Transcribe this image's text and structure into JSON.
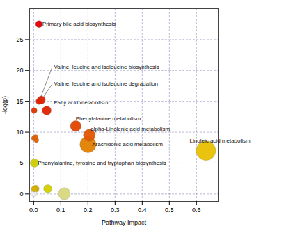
{
  "chart_data": {
    "type": "scatter",
    "xlabel": "Pathway Impact",
    "ylabel": "-log(p)",
    "x": [
      0.02,
      0.02,
      0.028,
      0.048,
      0.002,
      0.001,
      0.007,
      0.01,
      0.003,
      0.155,
      0.205,
      0.2,
      0.635,
      0.002,
      0.007,
      0.001,
      0.052,
      0.113
    ],
    "values": [
      27.5,
      15.0,
      15.2,
      13.5,
      13.5,
      9.0,
      9.2,
      8.7,
      5.0,
      11.0,
      9.5,
      8.0,
      7.0,
      0.8,
      0.85,
      0.05,
      0.85,
      0.05
    ],
    "sizes": [
      55,
      45,
      75,
      90,
      38,
      28,
      28,
      25,
      80,
      130,
      160,
      290,
      420,
      38,
      55,
      40,
      75,
      160
    ],
    "colors": [
      "#dd0000",
      "#dd2200",
      "#dd2200",
      "#dd2200",
      "#dd3300",
      "#e06000",
      "#e06000",
      "#e06000",
      "#cccc00",
      "#e04500",
      "#e05500",
      "#e08000",
      "#e8c000",
      "#d8b000",
      "#d4b000",
      "#eeeeee",
      "#d0d000",
      "#d8d880"
    ],
    "annotations": [
      {
        "text": "Primary bile acid biosynthesis",
        "x": 0.032,
        "y": 27.5
      },
      {
        "text": "Valine, leucine and isoleucine biosynthesis",
        "x": 0.075,
        "y": 20.5
      },
      {
        "text": "Valine, leucine and isoleucine degradation",
        "x": 0.075,
        "y": 17.8
      },
      {
        "text": "Fatty acid metabolism",
        "x": 0.075,
        "y": 14.8
      },
      {
        "text": "Phenylalanine metabolism",
        "x": 0.155,
        "y": 12.2
      },
      {
        "text": "alpha-Linolenic acid metabolism",
        "x": 0.21,
        "y": 10.5
      },
      {
        "text": "Arachidonic acid metabolism",
        "x": 0.215,
        "y": 8.0
      },
      {
        "text": "Linoleic acid metabolism",
        "x": 0.575,
        "y": 8.6
      },
      {
        "text": "Phenylalanine, tyrosine and tryptophan biosynthesis",
        "x": 0.015,
        "y": 5.0
      }
    ],
    "annotation_lines": [
      {
        "x0": 0.068,
        "y0": 20.5,
        "x1": 0.023,
        "y1": 15.3
      },
      {
        "x0": 0.068,
        "y0": 17.8,
        "x1": 0.03,
        "y1": 15.3
      }
    ],
    "xlim": [
      -0.015,
      0.68
    ],
    "ylim": [
      -1.2,
      30
    ],
    "xticks": [
      {
        "value": 0,
        "label": "0.0"
      },
      0.1,
      0.2,
      0.3,
      0.4,
      0.5,
      0.6
    ],
    "yticks": [
      0,
      5,
      10,
      15,
      20,
      25
    ],
    "grid": true
  }
}
